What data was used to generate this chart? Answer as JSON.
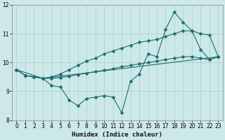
{
  "xlabel": "Humidex (Indice chaleur)",
  "xlim": [
    0,
    23
  ],
  "ylim": [
    8,
    12
  ],
  "yticks": [
    8,
    9,
    10,
    11,
    12
  ],
  "xticks": [
    0,
    1,
    2,
    3,
    4,
    5,
    6,
    7,
    8,
    9,
    10,
    11,
    12,
    13,
    14,
    15,
    16,
    17,
    18,
    19,
    20,
    21,
    22,
    23
  ],
  "bg_color": "#cde8e8",
  "line_color": "#1a6e6e",
  "grid_color": "#aacece",
  "lines": [
    {
      "x": [
        0,
        1,
        2,
        3,
        4,
        5,
        6,
        7,
        8,
        9,
        10,
        11,
        12,
        13,
        14,
        15,
        16,
        17,
        18,
        19,
        20,
        21,
        22,
        23
      ],
      "y": [
        9.75,
        9.55,
        9.5,
        9.45,
        9.2,
        9.15,
        8.7,
        8.5,
        8.75,
        8.8,
        8.85,
        8.8,
        8.25,
        9.35,
        9.6,
        10.3,
        10.2,
        11.15,
        11.75,
        11.4,
        11.1,
        10.45,
        10.1,
        10.2
      ],
      "marker": "D",
      "ms": 2.5,
      "lw": 0.8
    },
    {
      "x": [
        0,
        1,
        2,
        3,
        4,
        5,
        6,
        7,
        8,
        9,
        10,
        11,
        12,
        13,
        14,
        15,
        16,
        17,
        18,
        19,
        20,
        21,
        22,
        23
      ],
      "y": [
        9.75,
        9.55,
        9.5,
        9.45,
        9.5,
        9.6,
        9.75,
        9.9,
        10.05,
        10.15,
        10.3,
        10.4,
        10.5,
        10.6,
        10.7,
        10.75,
        10.8,
        10.9,
        11.0,
        11.1,
        11.1,
        11.0,
        10.95,
        10.2
      ],
      "marker": "D",
      "ms": 2.5,
      "lw": 0.8
    },
    {
      "x": [
        0,
        3,
        23
      ],
      "y": [
        9.75,
        9.45,
        10.2
      ],
      "marker": null,
      "ms": 0,
      "lw": 0.8
    },
    {
      "x": [
        0,
        1,
        2,
        3,
        4,
        5,
        6,
        7,
        8,
        9,
        10,
        11,
        12,
        13,
        14,
        15,
        16,
        17,
        18,
        19,
        20,
        21,
        22,
        23
      ],
      "y": [
        9.75,
        9.55,
        9.5,
        9.45,
        9.45,
        9.48,
        9.52,
        9.58,
        9.63,
        9.68,
        9.73,
        9.78,
        9.85,
        9.9,
        9.95,
        10.0,
        10.05,
        10.1,
        10.15,
        10.2,
        10.2,
        10.15,
        10.1,
        10.2
      ],
      "marker": "D",
      "ms": 2.5,
      "lw": 0.8
    }
  ]
}
